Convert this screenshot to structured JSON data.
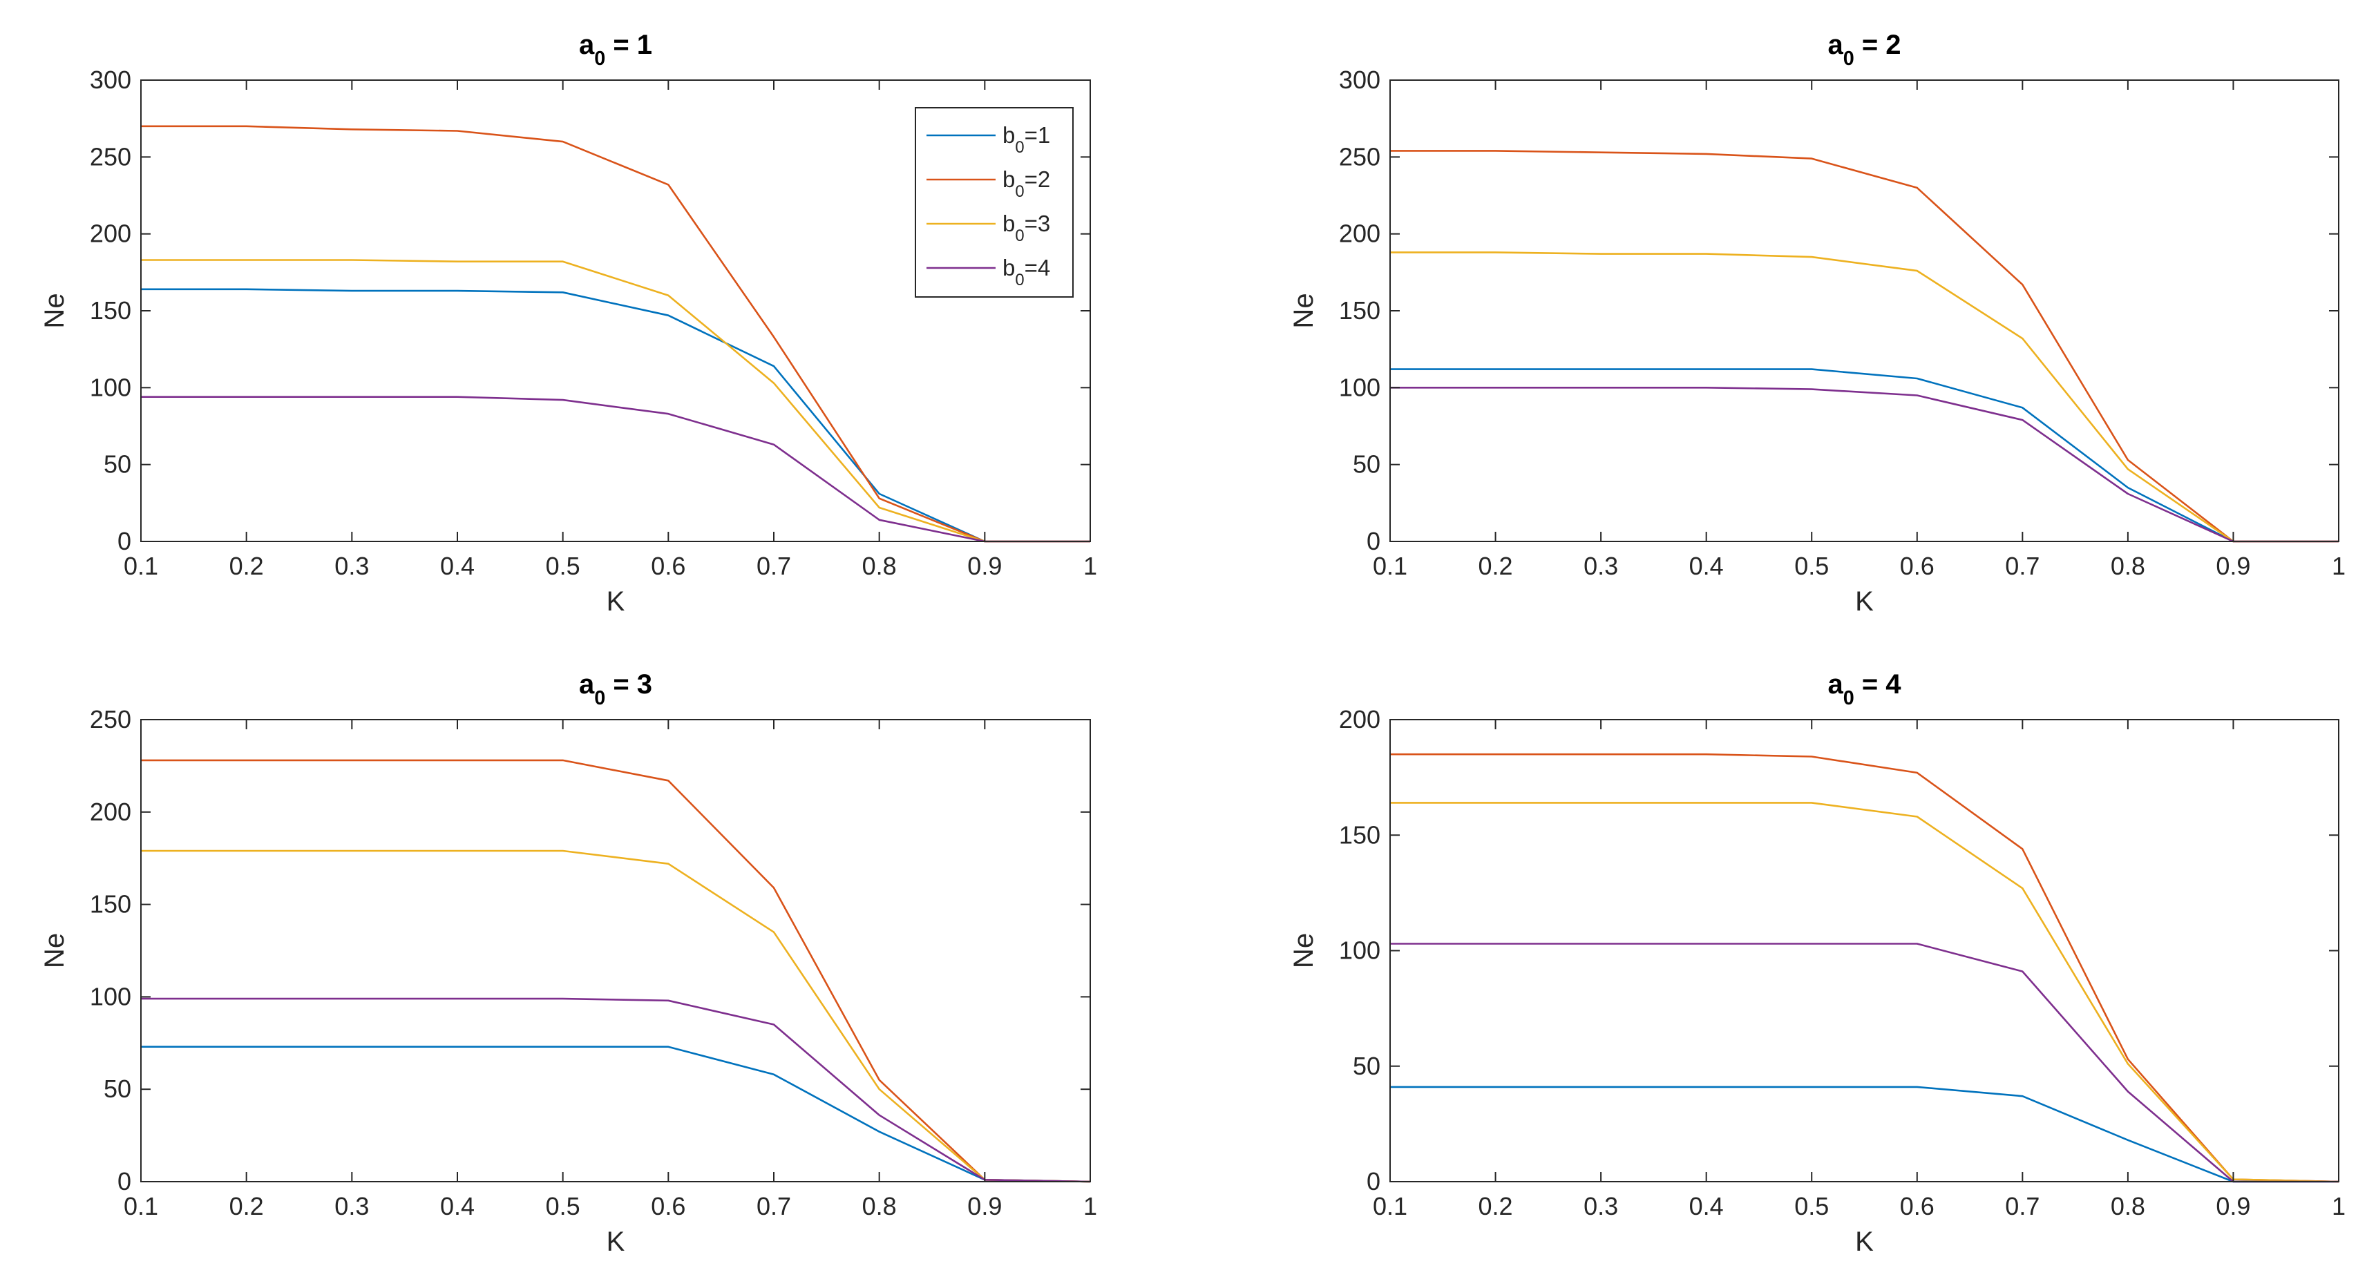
{
  "chart_data": [
    {
      "type": "line",
      "title": "a",
      "title_sub": "0",
      "title_suffix": " = 1",
      "xlabel": "K",
      "ylabel": "Ne",
      "x": [
        0.1,
        0.2,
        0.3,
        0.4,
        0.5,
        0.6,
        0.7,
        0.8,
        0.9,
        1.0
      ],
      "xlim": [
        0.1,
        1
      ],
      "ylim": [
        0,
        300
      ],
      "xticks": [
        "0.1",
        "0.2",
        "0.3",
        "0.4",
        "0.5",
        "0.6",
        "0.7",
        "0.8",
        "0.9",
        "1"
      ],
      "yticks": [
        0,
        50,
        100,
        150,
        200,
        250,
        300
      ],
      "series": [
        {
          "name": "b0=1",
          "values": [
            164,
            164,
            163,
            163,
            162,
            147,
            114,
            31,
            0,
            0
          ]
        },
        {
          "name": "b0=2",
          "values": [
            270,
            270,
            268,
            267,
            260,
            232,
            133,
            28,
            0,
            0
          ]
        },
        {
          "name": "b0=3",
          "values": [
            183,
            183,
            183,
            182,
            182,
            160,
            103,
            22,
            0,
            0
          ]
        },
        {
          "name": "b0=4",
          "values": [
            94,
            94,
            94,
            94,
            92,
            83,
            63,
            14,
            0,
            0
          ]
        }
      ]
    },
    {
      "type": "line",
      "title": "a",
      "title_sub": "0",
      "title_suffix": " = 2",
      "xlabel": "K",
      "ylabel": "Ne",
      "x": [
        0.1,
        0.2,
        0.3,
        0.4,
        0.5,
        0.6,
        0.7,
        0.8,
        0.9,
        1.0
      ],
      "xlim": [
        0.1,
        1
      ],
      "ylim": [
        0,
        300
      ],
      "xticks": [
        "0.1",
        "0.2",
        "0.3",
        "0.4",
        "0.5",
        "0.6",
        "0.7",
        "0.8",
        "0.9",
        "1"
      ],
      "yticks": [
        0,
        50,
        100,
        150,
        200,
        250,
        300
      ],
      "series": [
        {
          "name": "b0=1",
          "values": [
            112,
            112,
            112,
            112,
            112,
            106,
            87,
            35,
            0,
            0
          ]
        },
        {
          "name": "b0=2",
          "values": [
            254,
            254,
            253,
            252,
            249,
            230,
            167,
            53,
            0,
            0
          ]
        },
        {
          "name": "b0=3",
          "values": [
            188,
            188,
            187,
            187,
            185,
            176,
            132,
            47,
            0,
            0
          ]
        },
        {
          "name": "b0=4",
          "values": [
            100,
            100,
            100,
            100,
            99,
            95,
            79,
            31,
            0,
            0
          ]
        }
      ]
    },
    {
      "type": "line",
      "title": "a",
      "title_sub": "0",
      "title_suffix": " = 3",
      "xlabel": "K",
      "ylabel": "Ne",
      "x": [
        0.1,
        0.2,
        0.3,
        0.4,
        0.5,
        0.6,
        0.7,
        0.8,
        0.9,
        1.0
      ],
      "xlim": [
        0.1,
        1
      ],
      "ylim": [
        0,
        250
      ],
      "xticks": [
        "0.1",
        "0.2",
        "0.3",
        "0.4",
        "0.5",
        "0.6",
        "0.7",
        "0.8",
        "0.9",
        "1"
      ],
      "yticks": [
        0,
        50,
        100,
        150,
        200,
        250
      ],
      "series": [
        {
          "name": "b0=1",
          "values": [
            73,
            73,
            73,
            73,
            73,
            73,
            58,
            27,
            1,
            0
          ]
        },
        {
          "name": "b0=2",
          "values": [
            228,
            228,
            228,
            228,
            228,
            217,
            159,
            55,
            1,
            0
          ]
        },
        {
          "name": "b0=3",
          "values": [
            179,
            179,
            179,
            179,
            179,
            172,
            135,
            50,
            1,
            0
          ]
        },
        {
          "name": "b0=4",
          "values": [
            99,
            99,
            99,
            99,
            99,
            98,
            85,
            36,
            1,
            0
          ]
        }
      ]
    },
    {
      "type": "line",
      "title": "a",
      "title_sub": "0",
      "title_suffix": " = 4",
      "xlabel": "K",
      "ylabel": "Ne",
      "x": [
        0.1,
        0.2,
        0.3,
        0.4,
        0.5,
        0.6,
        0.7,
        0.8,
        0.9,
        1.0
      ],
      "xlim": [
        0.1,
        1
      ],
      "ylim": [
        0,
        200
      ],
      "xticks": [
        "0.1",
        "0.2",
        "0.3",
        "0.4",
        "0.5",
        "0.6",
        "0.7",
        "0.8",
        "0.9",
        "1"
      ],
      "yticks": [
        0,
        50,
        100,
        150,
        200
      ],
      "series": [
        {
          "name": "b0=1",
          "values": [
            41,
            41,
            41,
            41,
            41,
            41,
            37,
            18,
            0,
            0
          ]
        },
        {
          "name": "b0=2",
          "values": [
            185,
            185,
            185,
            185,
            184,
            177,
            144,
            53,
            1,
            0
          ]
        },
        {
          "name": "b0=3",
          "values": [
            164,
            164,
            164,
            164,
            164,
            158,
            127,
            51,
            1,
            0
          ]
        },
        {
          "name": "b0=4",
          "values": [
            103,
            103,
            103,
            103,
            103,
            103,
            91,
            39,
            0,
            0
          ]
        }
      ]
    }
  ],
  "legend": {
    "location": "top-right",
    "panel": 0,
    "entries": [
      {
        "prefix": "b",
        "sub": "0",
        "suffix": "=1"
      },
      {
        "prefix": "b",
        "sub": "0",
        "suffix": "=2"
      },
      {
        "prefix": "b",
        "sub": "0",
        "suffix": "=3"
      },
      {
        "prefix": "b",
        "sub": "0",
        "suffix": "=4"
      }
    ]
  },
  "colors": {
    "series": [
      "#0072BD",
      "#D95319",
      "#EDB120",
      "#7E2F8E"
    ],
    "axis": "#262626",
    "background": "#ffffff"
  }
}
